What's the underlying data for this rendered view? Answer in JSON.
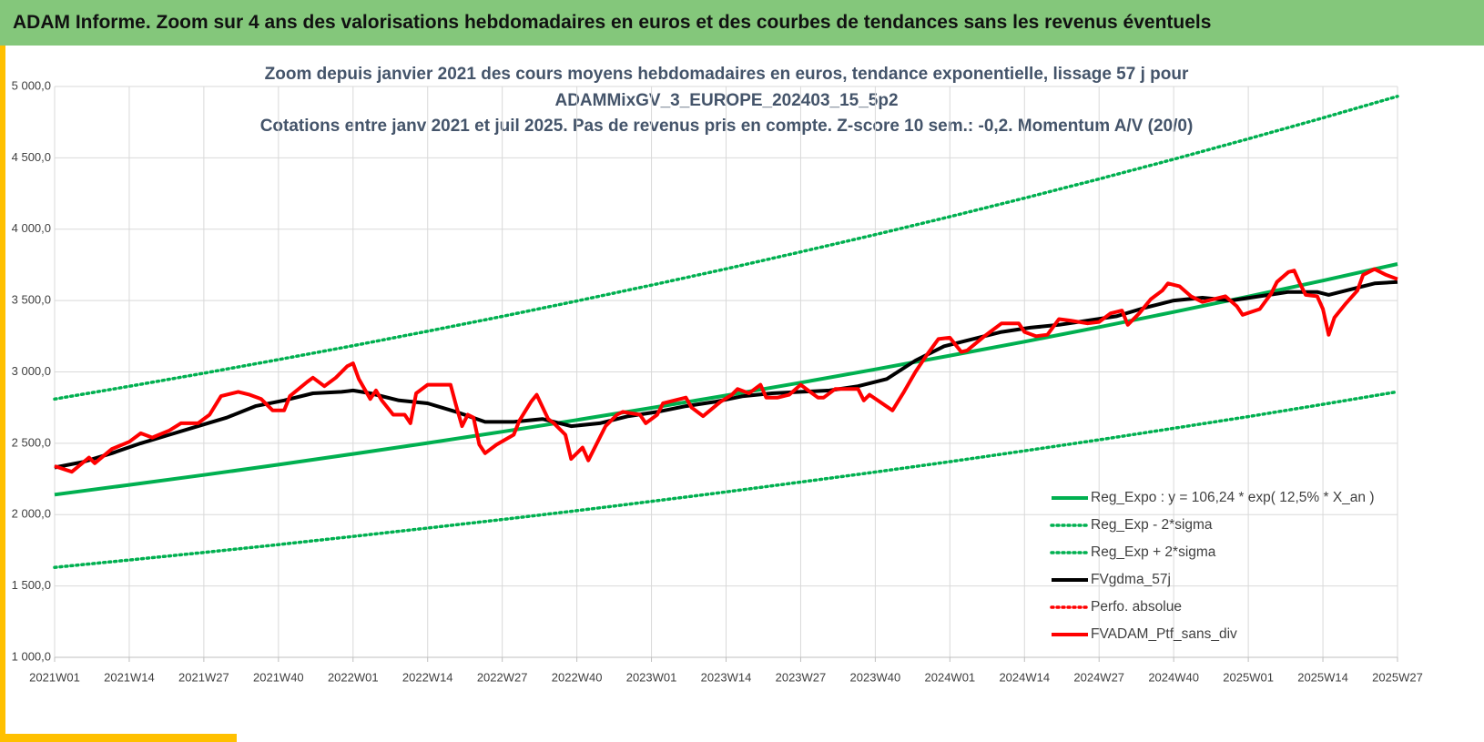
{
  "header": {
    "title": "ADAM Informe. Zoom sur 4 ans des valorisations hebdomadaires en euros et des courbes de tendances sans les revenus éventuels"
  },
  "chart_data": {
    "type": "line",
    "title": [
      "Zoom depuis janvier 2021 des cours moyens hebdomadaires  en euros, tendance exponentielle, lissage 57 j pour",
      "ADAMMixGV_3_EUROPE_202403_15_5p2"
    ],
    "subtitle": "Cotations entre janv 2021 et juil 2025. Pas de revenus pris en compte. Z-score 10 sem.: -0,2. Momentum A/V (20/0)",
    "xlim": [
      0,
      234
    ],
    "xticks": [
      {
        "value": 0,
        "label": "2021W01"
      },
      {
        "value": 13,
        "label": "2021W14"
      },
      {
        "value": 26,
        "label": "2021W27"
      },
      {
        "value": 39,
        "label": "2021W40"
      },
      {
        "value": 52,
        "label": "2022W01"
      },
      {
        "value": 65,
        "label": "2022W14"
      },
      {
        "value": 78,
        "label": "2022W27"
      },
      {
        "value": 91,
        "label": "2022W40"
      },
      {
        "value": 104,
        "label": "2023W01"
      },
      {
        "value": 117,
        "label": "2023W14"
      },
      {
        "value": 130,
        "label": "2023W27"
      },
      {
        "value": 143,
        "label": "2023W40"
      },
      {
        "value": 156,
        "label": "2024W01"
      },
      {
        "value": 169,
        "label": "2024W14"
      },
      {
        "value": 182,
        "label": "2024W27"
      },
      {
        "value": 195,
        "label": "2024W40"
      },
      {
        "value": 208,
        "label": "2025W01"
      },
      {
        "value": 221,
        "label": "2025W14"
      },
      {
        "value": 234,
        "label": "2025W27"
      }
    ],
    "ylim": [
      1000,
      5000
    ],
    "yticks": [
      {
        "value": 1000,
        "label": "1 000,0"
      },
      {
        "value": 1500,
        "label": "1 500,0"
      },
      {
        "value": 2000,
        "label": "2 000,0"
      },
      {
        "value": 2500,
        "label": "2 500,0"
      },
      {
        "value": 3000,
        "label": "3 000,0"
      },
      {
        "value": 3500,
        "label": "3 500,0"
      },
      {
        "value": 4000,
        "label": "4 000,0"
      },
      {
        "value": 4500,
        "label": "4 500,0"
      },
      {
        "value": 5000,
        "label": "5 000,0"
      }
    ],
    "grid": true,
    "legend": "lower-right",
    "series": [
      {
        "name": "Reg_Expo : y = 106,24 * exp( 12,5% *  X_an )",
        "color": "#00b050",
        "style": "solid",
        "x": [
          0,
          13,
          26,
          39,
          52,
          65,
          78,
          91,
          104,
          117,
          130,
          143,
          156,
          169,
          182,
          195,
          208,
          221,
          234
        ],
        "values": [
          2140,
          2208,
          2278,
          2350,
          2425,
          2502,
          2581,
          2663,
          2748,
          2835,
          2925,
          3018,
          3114,
          3212,
          3314,
          3420,
          3528,
          3640,
          3756
        ]
      },
      {
        "name": "Reg_Exp - 2*sigma",
        "color": "#00b050",
        "style": "dotted",
        "x": [
          0,
          13,
          26,
          39,
          52,
          65,
          78,
          91,
          104,
          117,
          130,
          143,
          156,
          169,
          182,
          195,
          208,
          221,
          234
        ],
        "values": [
          1630,
          1682,
          1735,
          1790,
          1847,
          1906,
          1966,
          2028,
          2093,
          2159,
          2228,
          2298,
          2371,
          2447,
          2524,
          2605,
          2687,
          2773,
          2861
        ]
      },
      {
        "name": "Reg_Exp + 2*sigma",
        "color": "#00b050",
        "style": "dotted",
        "x": [
          0,
          13,
          26,
          39,
          52,
          65,
          78,
          91,
          104,
          117,
          130,
          143,
          156,
          169,
          182,
          195,
          208,
          221,
          234
        ],
        "values": [
          2810,
          2899,
          2991,
          3086,
          3184,
          3285,
          3389,
          3497,
          3608,
          3722,
          3841,
          3962,
          4088,
          4218,
          4352,
          4490,
          4633,
          4780,
          4931
        ]
      },
      {
        "name": "FVgdma_57j",
        "color": "#000000",
        "style": "solid",
        "x": [
          0,
          5,
          10,
          15,
          20,
          25,
          30,
          35,
          40,
          45,
          50,
          52,
          55,
          60,
          65,
          70,
          75,
          80,
          85,
          90,
          95,
          100,
          105,
          110,
          115,
          120,
          125,
          130,
          135,
          140,
          145,
          150,
          155,
          160,
          165,
          170,
          175,
          180,
          185,
          190,
          195,
          200,
          205,
          210,
          215,
          220,
          222,
          225,
          230,
          234
        ],
        "values": [
          2330,
          2370,
          2430,
          2500,
          2560,
          2620,
          2680,
          2760,
          2800,
          2850,
          2860,
          2870,
          2850,
          2800,
          2780,
          2720,
          2650,
          2650,
          2670,
          2620,
          2640,
          2690,
          2720,
          2760,
          2790,
          2830,
          2850,
          2860,
          2870,
          2900,
          2950,
          3080,
          3180,
          3230,
          3280,
          3310,
          3330,
          3360,
          3390,
          3450,
          3500,
          3520,
          3500,
          3530,
          3560,
          3560,
          3540,
          3570,
          3620,
          3630
        ]
      },
      {
        "name": "Perfo. absolue",
        "color": "#ff0000",
        "style": "dotted",
        "x": [],
        "values": []
      },
      {
        "name": "FVADAM_Ptf_sans_div",
        "color": "#ff0000",
        "style": "solid",
        "x": [
          0,
          3,
          6,
          7,
          10,
          13,
          15,
          17,
          20,
          22,
          25,
          27,
          29,
          32,
          34,
          36,
          38,
          40,
          41,
          44,
          45,
          47,
          49,
          51,
          52,
          53,
          55,
          56,
          57,
          59,
          61,
          62,
          63,
          65,
          69,
          70,
          71,
          72,
          73,
          74,
          75,
          77,
          80,
          81,
          83,
          84,
          86,
          87,
          89,
          90,
          92,
          93,
          95,
          96,
          98,
          99,
          102,
          103,
          105,
          106,
          108,
          110,
          111,
          113,
          116,
          118,
          119,
          121,
          123,
          124,
          126,
          128,
          130,
          133,
          134,
          136,
          140,
          141,
          142,
          146,
          148,
          150,
          152,
          154,
          156,
          158,
          159,
          162,
          163,
          165,
          168,
          169,
          171,
          173,
          175,
          177,
          180,
          182,
          184,
          186,
          187,
          189,
          191,
          193,
          194,
          196,
          198,
          200,
          202,
          204,
          206,
          207,
          210,
          212,
          213,
          215,
          216,
          217,
          218,
          220,
          221,
          222,
          223,
          225,
          227,
          228,
          230,
          232,
          234
        ],
        "values": [
          2340,
          2300,
          2400,
          2360,
          2460,
          2510,
          2570,
          2540,
          2590,
          2640,
          2640,
          2700,
          2830,
          2860,
          2840,
          2810,
          2730,
          2730,
          2830,
          2930,
          2960,
          2900,
          2960,
          3040,
          3060,
          2950,
          2810,
          2870,
          2800,
          2700,
          2700,
          2640,
          2850,
          2910,
          2910,
          2760,
          2620,
          2700,
          2680,
          2490,
          2430,
          2490,
          2560,
          2660,
          2790,
          2840,
          2670,
          2640,
          2560,
          2390,
          2470,
          2380,
          2540,
          2620,
          2700,
          2720,
          2700,
          2640,
          2700,
          2780,
          2800,
          2820,
          2750,
          2690,
          2790,
          2840,
          2880,
          2850,
          2910,
          2820,
          2820,
          2840,
          2910,
          2820,
          2820,
          2880,
          2880,
          2800,
          2840,
          2730,
          2860,
          3000,
          3120,
          3230,
          3240,
          3140,
          3150,
          3250,
          3280,
          3340,
          3340,
          3280,
          3250,
          3260,
          3370,
          3360,
          3340,
          3350,
          3410,
          3430,
          3330,
          3410,
          3510,
          3570,
          3620,
          3600,
          3530,
          3490,
          3510,
          3530,
          3460,
          3400,
          3440,
          3550,
          3630,
          3700,
          3710,
          3620,
          3540,
          3530,
          3440,
          3260,
          3380,
          3480,
          3570,
          3680,
          3720,
          3680,
          3650
        ]
      }
    ]
  }
}
